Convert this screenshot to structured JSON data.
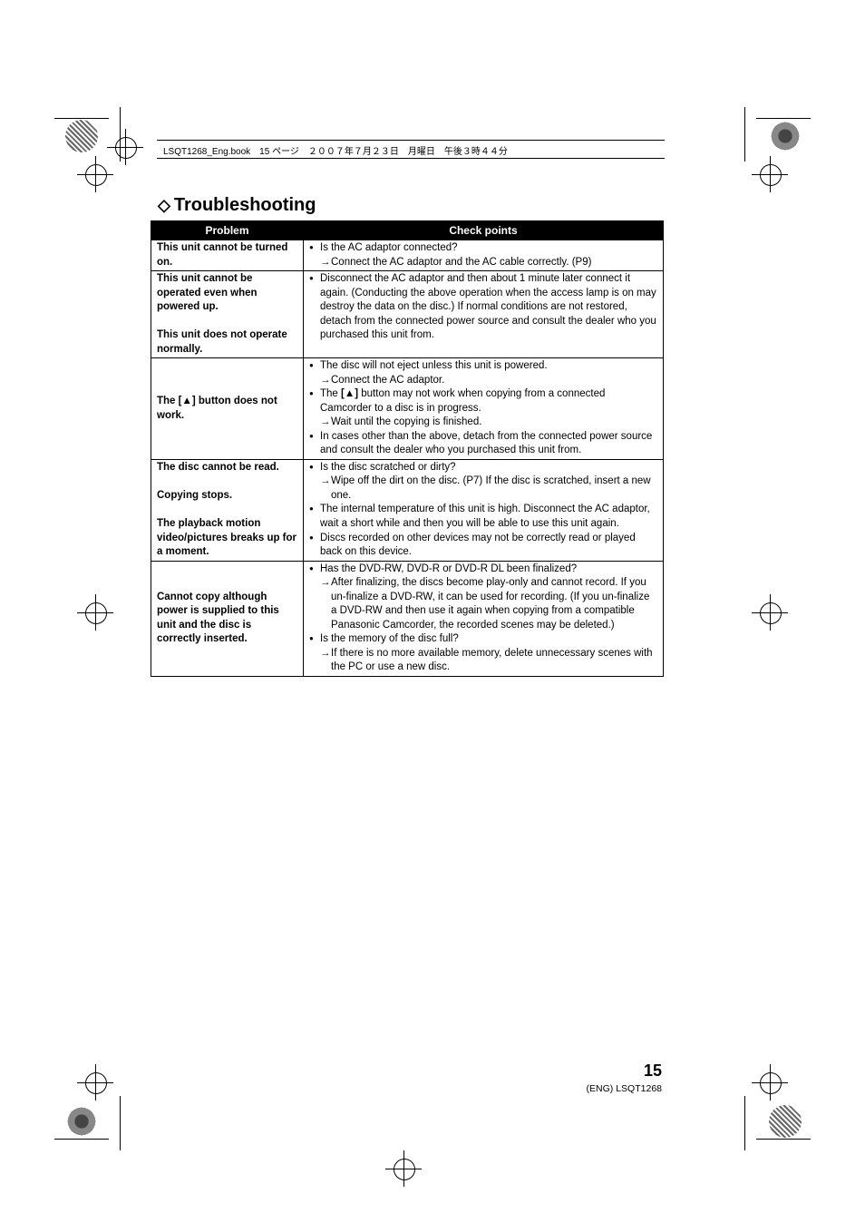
{
  "page_header": "LSQT1268_Eng.book　15 ページ　２００７年７月２３日　月曜日　午後３時４４分",
  "section_title": "Troubleshooting",
  "table": {
    "headers": {
      "problem": "Problem",
      "checkpoints": "Check points"
    },
    "rows": [
      {
        "problem": "This unit cannot be turned on.",
        "checkpoints": [
          {
            "type": "bullet",
            "text": "Is the AC adaptor connected?"
          },
          {
            "type": "arrow",
            "text": "Connect the AC adaptor and the AC cable correctly. (P9)"
          }
        ]
      },
      {
        "problem": "This unit cannot be operated even when powered up.<br><br>This unit does not operate normally.",
        "checkpoints": [
          {
            "type": "bullet",
            "text": "Disconnect the AC adaptor and then about 1 minute later connect it again. (Conducting the above operation when the access lamp is on may destroy the data on the disc.) If normal conditions are not restored, detach from the connected power source and consult the dealer who you purchased this unit from."
          }
        ]
      },
      {
        "problem": "The [<span class=\"eject-symbol\">&#9650;</span>] button does not work.",
        "checkpoints": [
          {
            "type": "bullet",
            "text": "The disc will not eject unless this unit is powered."
          },
          {
            "type": "arrow",
            "text": "Connect the AC adaptor."
          },
          {
            "type": "bullet",
            "text": "The <b>[&#9650;]</b> button may not work when copying from a connected Camcorder to a disc is in progress."
          },
          {
            "type": "arrow",
            "text": "Wait until the copying is finished."
          },
          {
            "type": "bullet",
            "text": "In cases other than the above, detach from the connected power source and consult the dealer who you purchased this unit from."
          }
        ]
      },
      {
        "problem": "The disc cannot be read.<br><br>Copying stops.<br><br>The playback motion video/pictures breaks up for a moment.",
        "checkpoints": [
          {
            "type": "bullet",
            "text": "Is the disc scratched or dirty?"
          },
          {
            "type": "arrow",
            "text": "Wipe off the dirt on the disc. (P7) If the disc is scratched, insert a new one."
          },
          {
            "type": "bullet",
            "text": "The internal temperature of this unit is high. Disconnect the AC adaptor, wait a short while and then you will be able to use this unit again."
          },
          {
            "type": "bullet",
            "text": "Discs recorded on other devices may not be correctly read or played back on this device."
          }
        ]
      },
      {
        "problem": "Cannot copy although power is supplied to this unit and the disc is correctly inserted.",
        "checkpoints": [
          {
            "type": "bullet",
            "text": "Has the DVD-RW, DVD-R or DVD-R DL been finalized?"
          },
          {
            "type": "arrow",
            "text": "After finalizing, the discs become play-only and cannot record. If you un-finalize a DVD-RW, it can be used for recording. (If you un-finalize a DVD-RW and then use it again when copying from a compatible Panasonic Camcorder, the recorded scenes may be deleted.)"
          },
          {
            "type": "bullet",
            "text": "Is the memory of the disc full?"
          },
          {
            "type": "arrow",
            "text": "If there is no more available memory, delete unnecessary scenes with the PC or use a new disc."
          }
        ]
      }
    ]
  },
  "page_number": "15",
  "footer": "(ENG) LSQT1268",
  "colors": {
    "header_bg": "#000000",
    "header_text": "#ffffff",
    "border": "#000000",
    "text": "#000000"
  }
}
